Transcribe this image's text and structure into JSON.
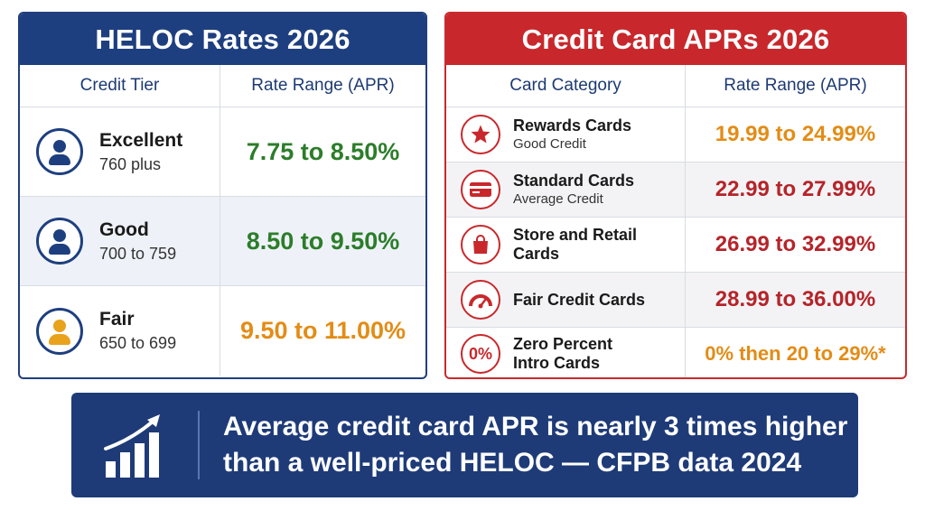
{
  "heloc": {
    "title": "HELOC Rates 2026",
    "headers": [
      "Credit Tier",
      "Rate Range (APR)"
    ],
    "rows": [
      {
        "tier": "Excellent",
        "score": "760 plus",
        "rate": "7.75 to 8.50%",
        "icon": "person-icon",
        "rate_color": "#2c7d2a"
      },
      {
        "tier": "Good",
        "score": "700 to 759",
        "rate": "8.50 to 9.50%",
        "icon": "person-icon",
        "rate_color": "#2c7d2a"
      },
      {
        "tier": "Fair",
        "score": "650 to 699",
        "rate": "9.50 to 11.00%",
        "icon": "person-icon",
        "rate_color": "#e38c16"
      }
    ]
  },
  "cards": {
    "title": "Credit Card APRs 2026",
    "headers": [
      "Card Category",
      "Rate Range (APR)"
    ],
    "rows": [
      {
        "name": "Rewards Cards",
        "sub": "Good Credit",
        "rate": "19.99 to 24.99%",
        "icon": "star-icon",
        "rate_color": "#e38c16"
      },
      {
        "name": "Standard Cards",
        "sub": "Average Credit",
        "rate": "22.99 to 27.99%",
        "icon": "credit-card-icon",
        "rate_color": "#b5242a"
      },
      {
        "name": "Store and Retail Cards",
        "sub": "",
        "rate": "26.99 to 32.99%",
        "icon": "shopping-bag-icon",
        "rate_color": "#b5242a"
      },
      {
        "name": "Fair Credit Cards",
        "sub": "",
        "rate": "28.99 to 36.00%",
        "icon": "gauge-icon",
        "rate_color": "#b5242a"
      },
      {
        "name": "Zero Percent",
        "sub": "Intro Cards",
        "rate": "0% then 20 to 29%*",
        "icon": "zero-percent-icon",
        "icon_text": "0%",
        "rate_color": "#e38c16"
      }
    ]
  },
  "banner": {
    "line1": "Average credit card APR is nearly 3 times higher",
    "line2": "than a well-priced HELOC — CFPB data 2024",
    "icon": "growth-chart-icon"
  },
  "colors": {
    "heloc_accent": "#1e3f7f",
    "card_accent": "#c8282c",
    "banner_bg": "#1e3b78"
  }
}
